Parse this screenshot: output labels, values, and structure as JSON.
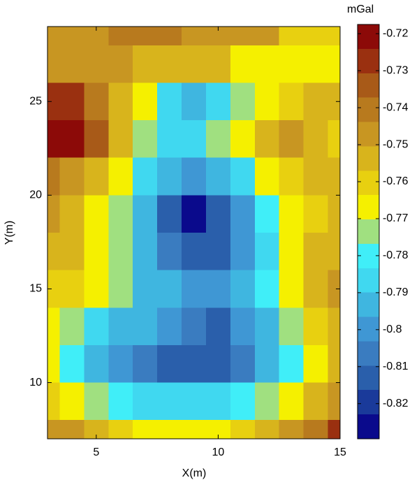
{
  "chart_data": {
    "type": "contour",
    "xlabel": "X(m)",
    "ylabel": "Y(m)",
    "colorbar_label": "mGal",
    "x": [
      3,
      4,
      5,
      6,
      7,
      8,
      9,
      10,
      11,
      12,
      13,
      14,
      15
    ],
    "y": [
      7,
      9,
      11,
      13,
      15,
      17,
      19,
      21,
      23,
      25,
      27,
      29
    ],
    "z": [
      [
        -0.75,
        -0.75,
        -0.755,
        -0.76,
        -0.765,
        -0.765,
        -0.765,
        -0.765,
        -0.76,
        -0.755,
        -0.75,
        -0.74,
        -0.725
      ],
      [
        -0.76,
        -0.765,
        -0.775,
        -0.78,
        -0.785,
        -0.785,
        -0.785,
        -0.785,
        -0.78,
        -0.775,
        -0.765,
        -0.755,
        -0.745
      ],
      [
        -0.77,
        -0.78,
        -0.79,
        -0.8,
        -0.805,
        -0.81,
        -0.815,
        -0.81,
        -0.805,
        -0.795,
        -0.78,
        -0.765,
        -0.755
      ],
      [
        -0.765,
        -0.775,
        -0.785,
        -0.79,
        -0.795,
        -0.8,
        -0.805,
        -0.81,
        -0.8,
        -0.79,
        -0.775,
        -0.76,
        -0.755
      ],
      [
        -0.76,
        -0.76,
        -0.765,
        -0.775,
        -0.79,
        -0.795,
        -0.8,
        -0.8,
        -0.79,
        -0.78,
        -0.765,
        -0.755,
        -0.75
      ],
      [
        -0.755,
        -0.755,
        -0.765,
        -0.775,
        -0.79,
        -0.805,
        -0.815,
        -0.81,
        -0.8,
        -0.785,
        -0.765,
        -0.755,
        -0.755
      ],
      [
        -0.75,
        -0.755,
        -0.765,
        -0.775,
        -0.79,
        -0.81,
        -0.825,
        -0.815,
        -0.8,
        -0.78,
        -0.765,
        -0.76,
        -0.755
      ],
      [
        -0.74,
        -0.745,
        -0.755,
        -0.77,
        -0.785,
        -0.795,
        -0.8,
        -0.795,
        -0.785,
        -0.77,
        -0.76,
        -0.755,
        -0.755
      ],
      [
        -0.722,
        -0.72,
        -0.735,
        -0.755,
        -0.775,
        -0.785,
        -0.785,
        -0.775,
        -0.765,
        -0.755,
        -0.75,
        -0.755,
        -0.76
      ],
      [
        -0.73,
        -0.725,
        -0.74,
        -0.755,
        -0.77,
        -0.785,
        -0.79,
        -0.785,
        -0.775,
        -0.765,
        -0.76,
        -0.755,
        -0.755
      ],
      [
        -0.745,
        -0.745,
        -0.745,
        -0.745,
        -0.755,
        -0.755,
        -0.755,
        -0.755,
        -0.765,
        -0.765,
        -0.765,
        -0.765,
        -0.765
      ],
      [
        -0.745,
        -0.745,
        -0.745,
        -0.74,
        -0.74,
        -0.74,
        -0.745,
        -0.745,
        -0.745,
        -0.75,
        -0.76,
        -0.76,
        -0.76
      ]
    ],
    "xlim": [
      3,
      15
    ],
    "ylim": [
      7,
      29
    ],
    "xticks": [
      5,
      10,
      15
    ],
    "yticks": [
      10,
      15,
      20,
      25
    ],
    "zlim": [
      -0.8295,
      -0.7175
    ],
    "zticks": [
      -0.72,
      -0.73,
      -0.74,
      -0.75,
      -0.76,
      -0.77,
      -0.78,
      -0.79,
      -0.8,
      -0.81,
      -0.82
    ],
    "colormap": [
      "#0a0a8c",
      "#1a3a9a",
      "#2a5fab",
      "#3a7cc0",
      "#3f97d4",
      "#3fb6e0",
      "#40d8f0",
      "#40eef8",
      "#a0e080",
      "#f5f000",
      "#e8d010",
      "#d8b41c",
      "#c89622",
      "#b87a1e",
      "#a85a18",
      "#9a3010",
      "#8c0a08"
    ]
  }
}
